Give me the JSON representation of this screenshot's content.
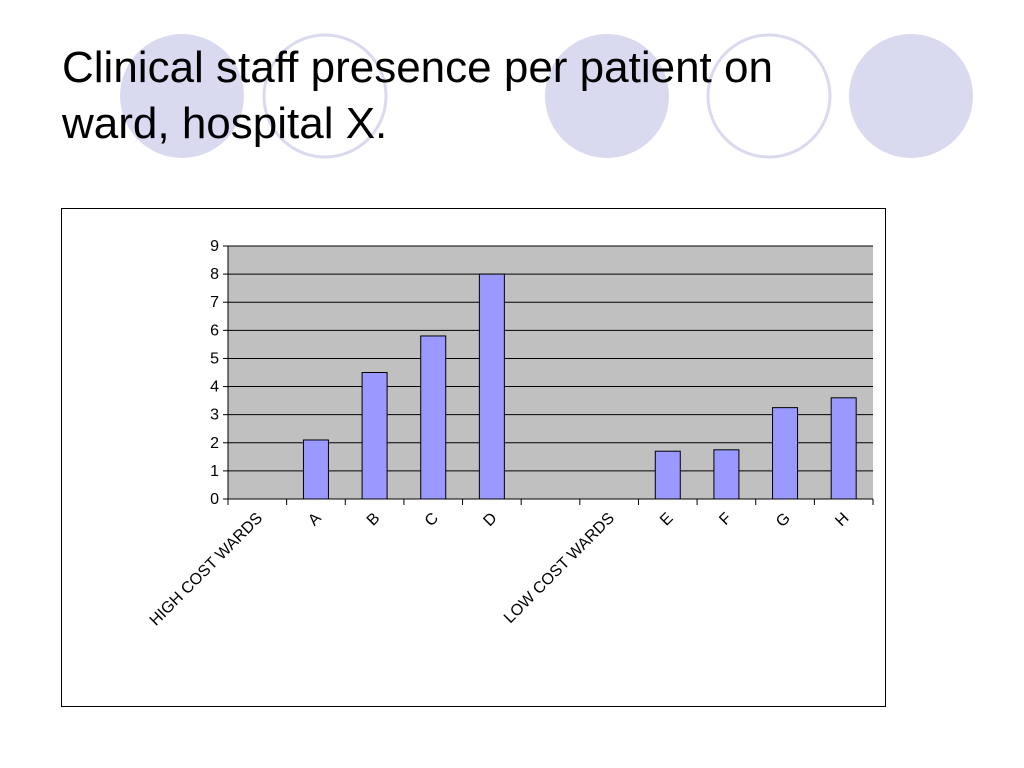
{
  "slide": {
    "title": "Clinical staff presence per patient on ward, hospital X."
  },
  "colors": {
    "bar_fill": "#9999ff",
    "plot_background": "#c0c0c0",
    "circle_fill": "#d9d9f0",
    "circle_outline": "#d9d9f0"
  },
  "chart_data": {
    "type": "bar",
    "categories": [
      "HIGH COST WARDS",
      "A",
      "B",
      "C",
      "D",
      "",
      "LOW COST WARDS",
      "E",
      "F",
      "G",
      "H"
    ],
    "values": [
      null,
      2.1,
      4.5,
      5.8,
      8.0,
      null,
      null,
      1.7,
      1.75,
      3.25,
      3.6
    ],
    "title": "",
    "xlabel": "",
    "ylabel": "",
    "ylim": [
      0,
      9
    ],
    "yticks": [
      0,
      1,
      2,
      3,
      4,
      5,
      6,
      7,
      8,
      9
    ],
    "grid": true,
    "legend": "none"
  }
}
